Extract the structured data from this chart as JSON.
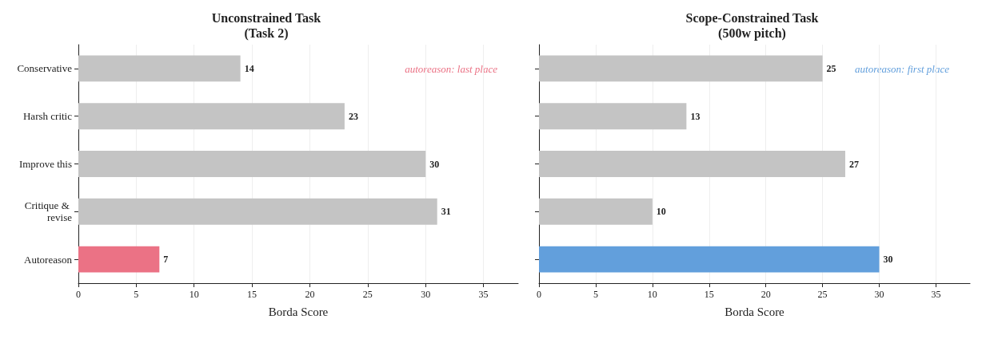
{
  "chart_data": [
    {
      "type": "bar",
      "orientation": "horizontal",
      "title": "Unconstrained Task\n(Task 2)",
      "xlabel": "Borda Score",
      "categories": [
        "Conservative",
        "Harsh critic",
        "Improve this",
        "Critique & revise",
        "Autoreason"
      ],
      "values": [
        14,
        23,
        30,
        31,
        7
      ],
      "colors": [
        "#c4c4c4",
        "#c4c4c4",
        "#c4c4c4",
        "#c4c4c4",
        "#eb7285"
      ],
      "xlim": [
        0,
        38
      ],
      "xticks": [
        0,
        5,
        10,
        15,
        20,
        25,
        30,
        35
      ],
      "grid": "x",
      "data_labels": true,
      "annotations": [
        "autoreason: last place"
      ]
    },
    {
      "type": "bar",
      "orientation": "horizontal",
      "title": "Scope-Constrained Task\n(500w pitch)",
      "xlabel": "Borda Score",
      "categories": [
        "Conservative",
        "Harsh critic",
        "Improve this",
        "Critique & revise",
        "Autoreason"
      ],
      "values": [
        25,
        13,
        27,
        10,
        30
      ],
      "colors": [
        "#c4c4c4",
        "#c4c4c4",
        "#c4c4c4",
        "#c4c4c4",
        "#629fdc"
      ],
      "xlim": [
        0,
        38
      ],
      "xticks": [
        0,
        5,
        10,
        15,
        20,
        25,
        30,
        35
      ],
      "grid": "x",
      "data_labels": true,
      "tick_labels": "x",
      "annotations": [
        "autoreason: first place"
      ]
    }
  ]
}
